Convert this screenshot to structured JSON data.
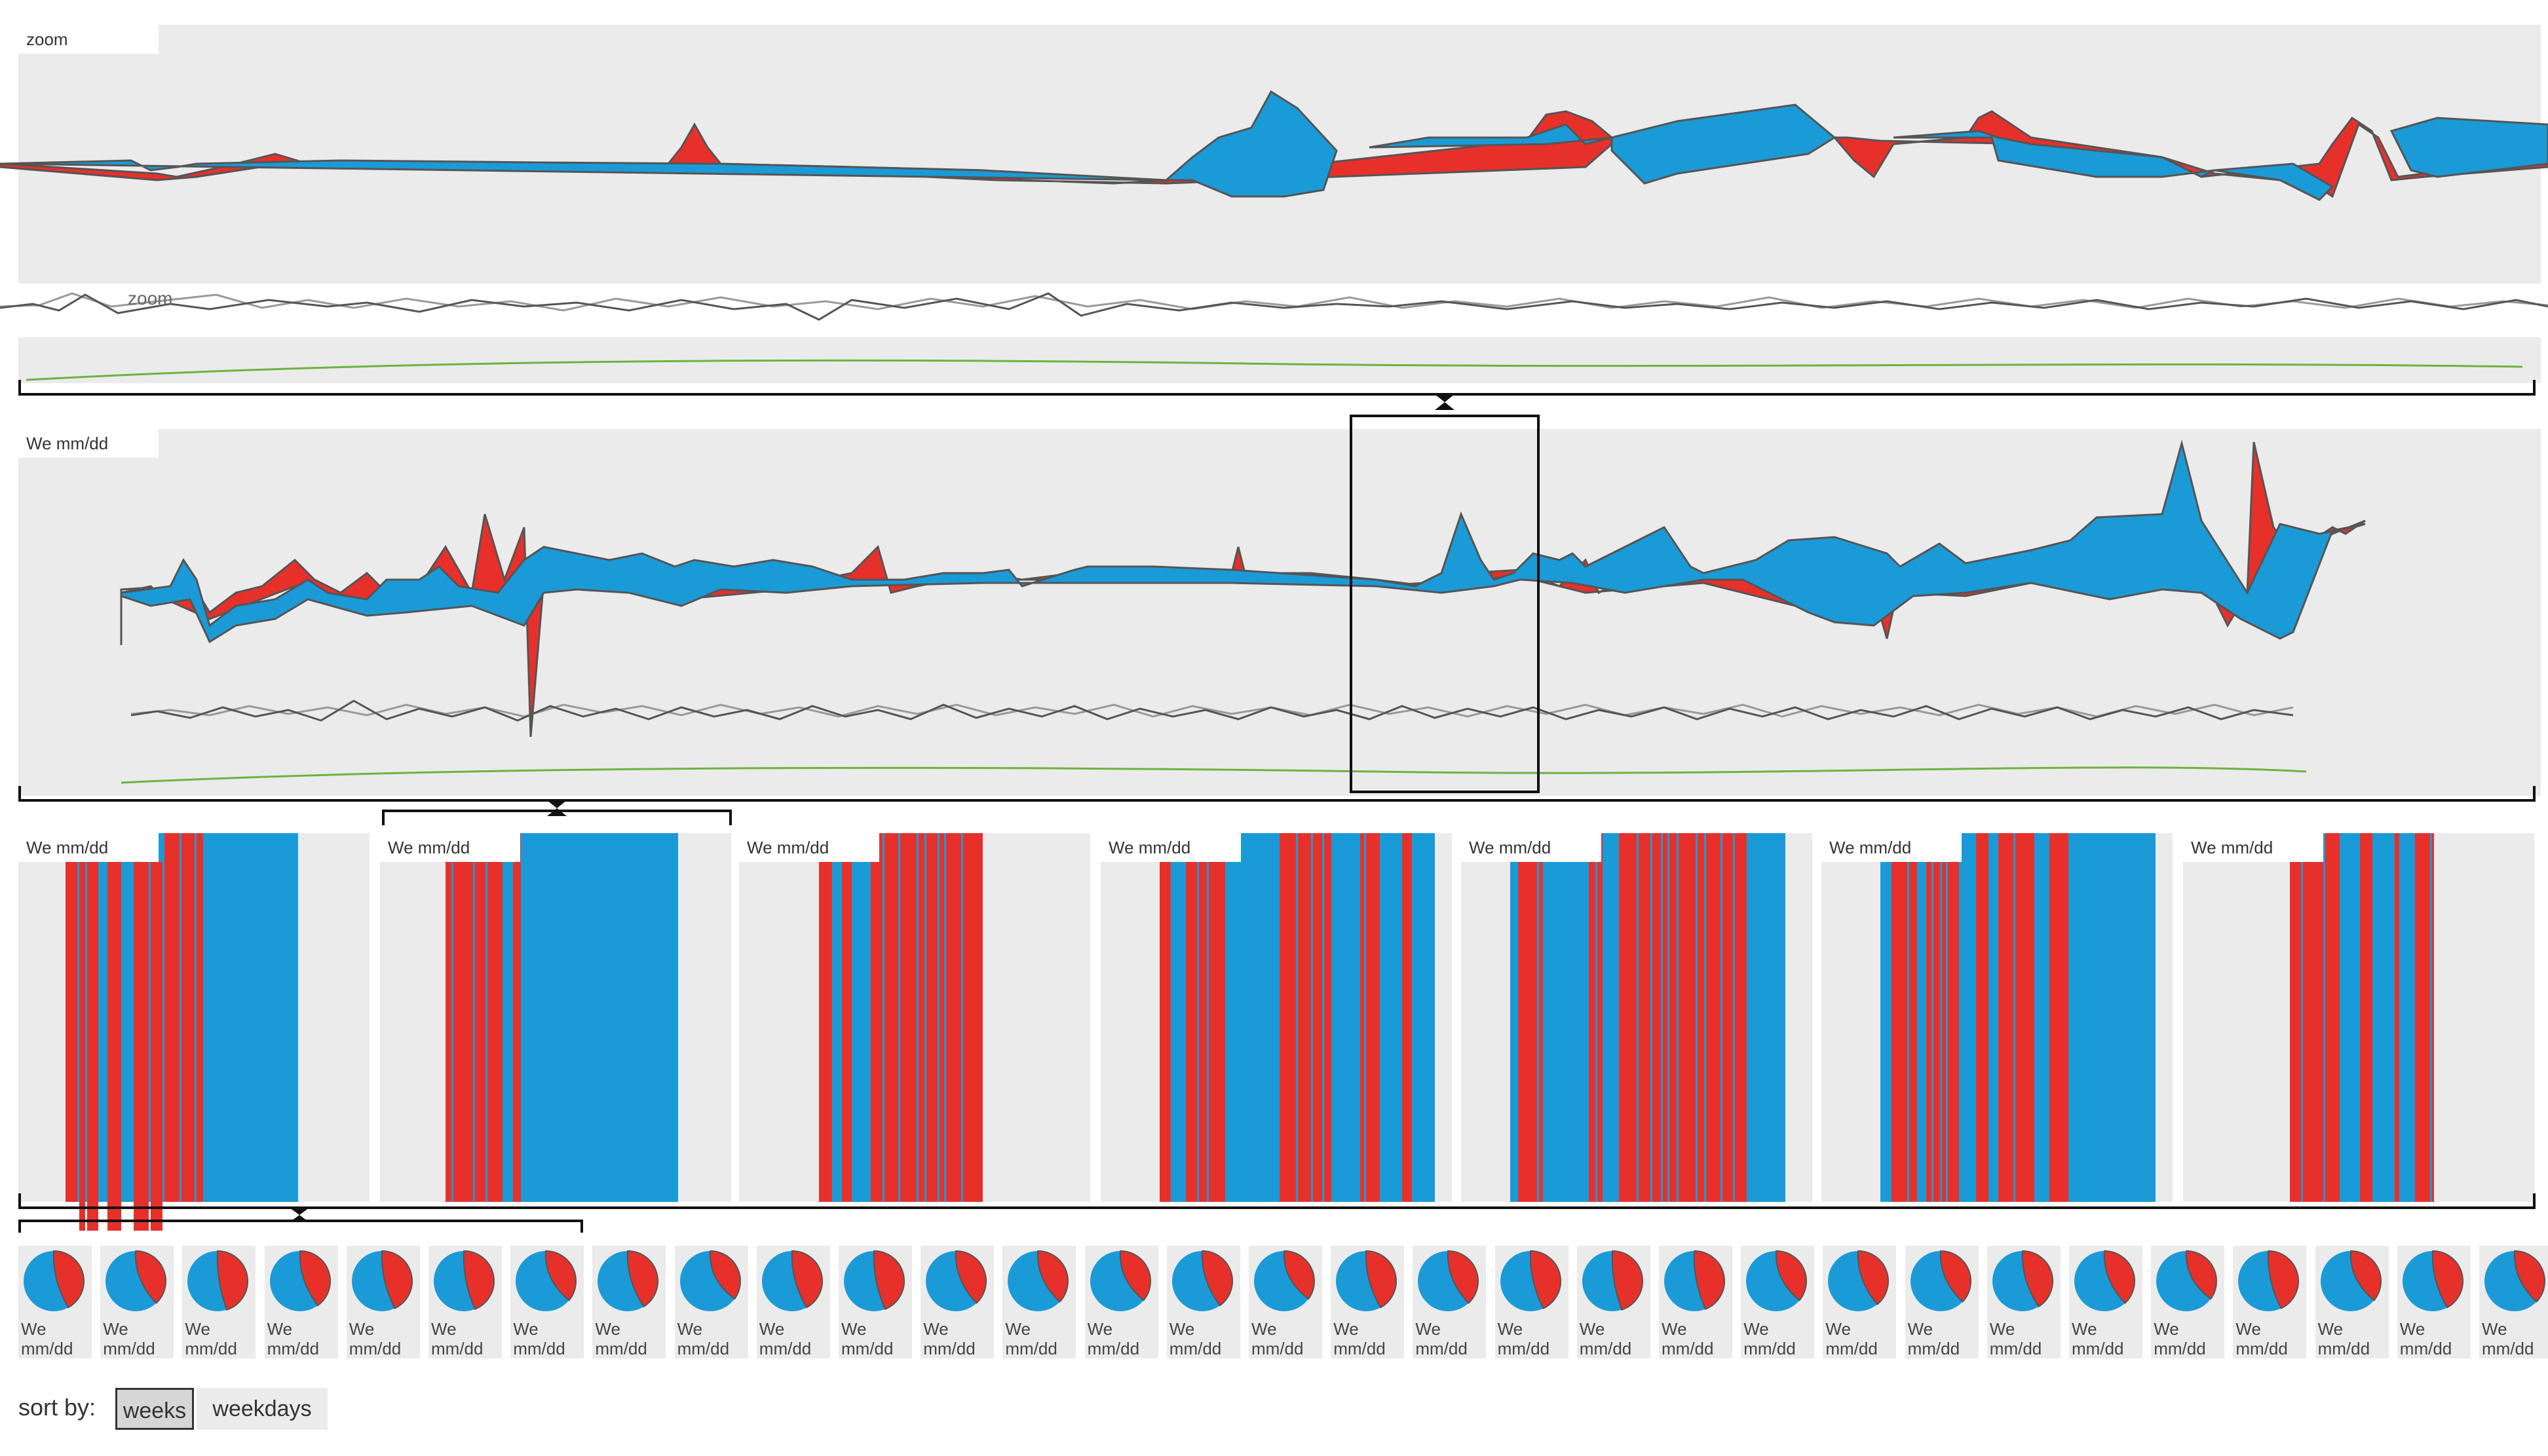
{
  "colors": {
    "blue": "#1a9bd7",
    "red": "#e8302b",
    "panel": "#ebebeb",
    "green": "#6db33f",
    "outline": "#555555"
  },
  "zoom_panel": {
    "tag": "zoom",
    "overlay_text": "zoom"
  },
  "week_panel": {
    "tag": "We mm/dd"
  },
  "day_panels": [
    {
      "tag": "We mm/dd"
    },
    {
      "tag": "We mm/dd"
    },
    {
      "tag": "We mm/dd"
    },
    {
      "tag": "We mm/dd"
    },
    {
      "tag": "We mm/dd"
    },
    {
      "tag": "We mm/dd"
    },
    {
      "tag": "We mm/dd"
    }
  ],
  "pie_cards": [
    {
      "line1": "We",
      "line2": "mm/dd",
      "red_fraction": 0.42
    },
    {
      "line1": "We",
      "line2": "mm/dd",
      "red_fraction": 0.38
    },
    {
      "line1": "We",
      "line2": "mm/dd",
      "red_fraction": 0.45
    },
    {
      "line1": "We",
      "line2": "mm/dd",
      "red_fraction": 0.4
    },
    {
      "line1": "We",
      "line2": "mm/dd",
      "red_fraction": 0.43
    },
    {
      "line1": "We",
      "line2": "mm/dd",
      "red_fraction": 0.44
    },
    {
      "line1": "We",
      "line2": "mm/dd",
      "red_fraction": 0.36
    },
    {
      "line1": "We",
      "line2": "mm/dd",
      "red_fraction": 0.41
    },
    {
      "line1": "We",
      "line2": "mm/dd",
      "red_fraction": 0.35
    },
    {
      "line1": "We",
      "line2": "mm/dd",
      "red_fraction": 0.42
    },
    {
      "line1": "We",
      "line2": "mm/dd",
      "red_fraction": 0.44
    },
    {
      "line1": "We",
      "line2": "mm/dd",
      "red_fraction": 0.38
    },
    {
      "line1": "We",
      "line2": "mm/dd",
      "red_fraction": 0.37
    },
    {
      "line1": "We",
      "line2": "mm/dd",
      "red_fraction": 0.36
    },
    {
      "line1": "We",
      "line2": "mm/dd",
      "red_fraction": 0.4
    },
    {
      "line1": "We",
      "line2": "mm/dd",
      "red_fraction": 0.35
    },
    {
      "line1": "We",
      "line2": "mm/dd",
      "red_fraction": 0.42
    },
    {
      "line1": "We",
      "line2": "mm/dd",
      "red_fraction": 0.38
    },
    {
      "line1": "We",
      "line2": "mm/dd",
      "red_fraction": 0.43
    },
    {
      "line1": "We",
      "line2": "mm/dd",
      "red_fraction": 0.45
    },
    {
      "line1": "We",
      "line2": "mm/dd",
      "red_fraction": 0.44
    },
    {
      "line1": "We",
      "line2": "mm/dd",
      "red_fraction": 0.36
    },
    {
      "line1": "We",
      "line2": "mm/dd",
      "red_fraction": 0.39
    },
    {
      "line1": "We",
      "line2": "mm/dd",
      "red_fraction": 0.37
    },
    {
      "line1": "We",
      "line2": "mm/dd",
      "red_fraction": 0.41
    },
    {
      "line1": "We",
      "line2": "mm/dd",
      "red_fraction": 0.38
    },
    {
      "line1": "We",
      "line2": "mm/dd",
      "red_fraction": 0.35
    },
    {
      "line1": "We",
      "line2": "mm/dd",
      "red_fraction": 0.43
    },
    {
      "line1": "We",
      "line2": "mm/dd",
      "red_fraction": 0.36
    },
    {
      "line1": "We",
      "line2": "mm/dd",
      "red_fraction": 0.42
    },
    {
      "line1": "We",
      "line2": "mm/dd",
      "red_fraction": 0.37
    }
  ],
  "sort": {
    "label": "sort by:",
    "options": [
      "weeks",
      "weekdays"
    ],
    "selected": "weeks"
  }
}
